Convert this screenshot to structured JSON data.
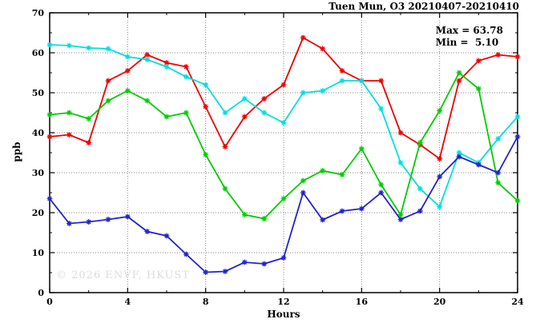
{
  "header": {
    "title": "Tuen Mun, O3 20210407-20210410"
  },
  "annotations": {
    "max_label": "Max = 63.78",
    "min_label": "Min =  5.10",
    "watermark": "© 2026 ENVF, HKUST"
  },
  "axis": {
    "xlabel": "Hours",
    "ylabel": "ppb"
  },
  "colors": {
    "frame": "#000000",
    "grid": "#888888",
    "watermark": "#dcdcdc"
  },
  "chart_data": {
    "type": "line",
    "title": "Tuen Mun, O3 20210407-20210410",
    "xlabel": "Hours",
    "ylabel": "ppb",
    "xlim": [
      0,
      24
    ],
    "ylim": [
      0,
      70
    ],
    "xticks": [
      0,
      4,
      8,
      12,
      16,
      20,
      24
    ],
    "xminor_step": 2,
    "yticks": [
      0,
      10,
      20,
      30,
      40,
      50,
      60,
      70
    ],
    "yminor_step": 5,
    "grid": true,
    "legend_position": "top-right-inside",
    "stats": {
      "max": 63.78,
      "min": 5.1
    },
    "x": [
      0,
      1,
      2,
      3,
      4,
      5,
      6,
      7,
      8,
      9,
      10,
      11,
      12,
      13,
      14,
      15,
      16,
      17,
      18,
      19,
      20,
      21,
      22,
      23,
      24
    ],
    "series": [
      {
        "name": "series-red",
        "color": "#ee0000",
        "values": [
          39,
          39.5,
          37.5,
          53,
          55.5,
          59.5,
          57.5,
          56.5,
          46.5,
          36.5,
          44,
          48.5,
          52,
          63.78,
          61,
          55.5,
          53,
          53,
          40,
          37,
          33.5,
          53,
          58,
          59.5,
          59
        ]
      },
      {
        "name": "series-cyan",
        "color": "#00dede",
        "values": [
          62,
          61.8,
          61.2,
          61,
          59,
          58.3,
          56.5,
          54,
          52,
          45,
          48.5,
          45,
          42.5,
          50,
          50.5,
          53,
          53,
          46,
          32.5,
          26,
          21.5,
          35,
          32.5,
          38.5,
          44
        ]
      },
      {
        "name": "series-green",
        "color": "#00cc00",
        "values": [
          44.5,
          45,
          43.5,
          48,
          50.5,
          48,
          44,
          45,
          34.5,
          26,
          19.5,
          18.5,
          23.5,
          28,
          30.5,
          29.5,
          36,
          27,
          19.5,
          37.5,
          45.5,
          55,
          51,
          27.5,
          23
        ]
      },
      {
        "name": "series-blue",
        "color": "#2222cc",
        "values": [
          23.5,
          17.3,
          17.7,
          18.3,
          19,
          15.3,
          14.2,
          9.6,
          5.1,
          5.3,
          7.6,
          7.2,
          8.7,
          25,
          18.2,
          20.4,
          21,
          25,
          18.3,
          20.4,
          29,
          34,
          32,
          30,
          39
        ]
      }
    ]
  }
}
